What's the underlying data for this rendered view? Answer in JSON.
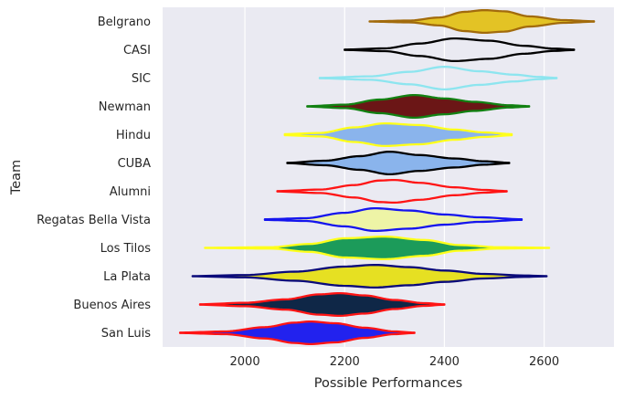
{
  "chart_data": {
    "type": "violin",
    "orientation": "horizontal",
    "xlabel": "Possible Performances",
    "ylabel": "Team",
    "xlim": [
      1835,
      2740
    ],
    "xticks": [
      2000,
      2200,
      2400,
      2600
    ],
    "grid": "vertical",
    "background": "#eaeaf2",
    "categories": [
      "Belgrano",
      "CASI",
      "SIC",
      "Newman",
      "Hindu",
      "CUBA",
      "Alumni",
      "Regatas Bella Vista",
      "Los Tilos",
      "La Plata",
      "Buenos Aires",
      "San Luis"
    ],
    "series": [
      {
        "team": "Belgrano",
        "min": 2250,
        "max": 2700,
        "fill": "#e3c325",
        "edge": "#a26b0c",
        "profile": [
          [
            2250,
            0.01
          ],
          [
            2330,
            0.08
          ],
          [
            2390,
            0.35
          ],
          [
            2440,
            0.85
          ],
          [
            2480,
            1.0
          ],
          [
            2520,
            0.9
          ],
          [
            2570,
            0.45
          ],
          [
            2640,
            0.12
          ],
          [
            2700,
            0.02
          ]
        ]
      },
      {
        "team": "CASI",
        "min": 2200,
        "max": 2660,
        "fill": "none",
        "edge": "#000000",
        "profile": [
          [
            2200,
            0.02
          ],
          [
            2280,
            0.12
          ],
          [
            2350,
            0.55
          ],
          [
            2420,
            1.0
          ],
          [
            2490,
            0.8
          ],
          [
            2560,
            0.35
          ],
          [
            2620,
            0.1
          ],
          [
            2660,
            0.02
          ]
        ]
      },
      {
        "team": "SIC",
        "min": 2150,
        "max": 2625,
        "fill": "none",
        "edge": "#8de5ef",
        "profile": [
          [
            2150,
            0.02
          ],
          [
            2250,
            0.15
          ],
          [
            2330,
            0.55
          ],
          [
            2400,
            1.0
          ],
          [
            2470,
            0.6
          ],
          [
            2540,
            0.3
          ],
          [
            2590,
            0.1
          ],
          [
            2625,
            0.02
          ]
        ]
      },
      {
        "team": "Newman",
        "min": 2125,
        "max": 2570,
        "fill": "#6b1616",
        "edge": "#128112",
        "profile": [
          [
            2125,
            0.02
          ],
          [
            2200,
            0.15
          ],
          [
            2270,
            0.6
          ],
          [
            2340,
            1.0
          ],
          [
            2400,
            0.7
          ],
          [
            2460,
            0.4
          ],
          [
            2530,
            0.1
          ],
          [
            2570,
            0.02
          ]
        ]
      },
      {
        "team": "Hindu",
        "min": 2080,
        "max": 2535,
        "fill": "#8ab4ec",
        "edge": "#ffff1a",
        "profile": [
          [
            2080,
            0.05
          ],
          [
            2150,
            0.15
          ],
          [
            2220,
            0.65
          ],
          [
            2280,
            1.0
          ],
          [
            2350,
            0.85
          ],
          [
            2420,
            0.45
          ],
          [
            2480,
            0.2
          ],
          [
            2535,
            0.05
          ]
        ]
      },
      {
        "team": "CUBA",
        "min": 2085,
        "max": 2530,
        "fill": "#8ab4ec",
        "edge": "#000000",
        "profile": [
          [
            2085,
            0.02
          ],
          [
            2160,
            0.2
          ],
          [
            2230,
            0.6
          ],
          [
            2290,
            1.0
          ],
          [
            2350,
            0.7
          ],
          [
            2420,
            0.4
          ],
          [
            2480,
            0.15
          ],
          [
            2530,
            0.02
          ]
        ]
      },
      {
        "team": "Alumni",
        "min": 2065,
        "max": 2525,
        "fill": "none",
        "edge": "#ff1515",
        "profile": [
          [
            2065,
            0.02
          ],
          [
            2150,
            0.15
          ],
          [
            2220,
            0.55
          ],
          [
            2270,
            0.95
          ],
          [
            2300,
            1.0
          ],
          [
            2350,
            0.75
          ],
          [
            2420,
            0.35
          ],
          [
            2480,
            0.12
          ],
          [
            2525,
            0.02
          ]
        ]
      },
      {
        "team": "Regatas Bella Vista",
        "min": 2040,
        "max": 2555,
        "fill": "#eef4a6",
        "edge": "#1515ee",
        "profile": [
          [
            2040,
            0.03
          ],
          [
            2120,
            0.12
          ],
          [
            2200,
            0.6
          ],
          [
            2260,
            1.0
          ],
          [
            2330,
            0.8
          ],
          [
            2400,
            0.45
          ],
          [
            2470,
            0.2
          ],
          [
            2555,
            0.03
          ]
        ]
      },
      {
        "team": "Los Tilos",
        "min": 1920,
        "max": 2610,
        "fill": "#1c9b5a",
        "edge": "#ffff1a",
        "profile": [
          [
            1920,
            0.01
          ],
          [
            2050,
            0.06
          ],
          [
            2130,
            0.35
          ],
          [
            2200,
            0.85
          ],
          [
            2280,
            1.0
          ],
          [
            2360,
            0.7
          ],
          [
            2430,
            0.25
          ],
          [
            2510,
            0.06
          ],
          [
            2610,
            0.01
          ]
        ]
      },
      {
        "team": "La Plata",
        "min": 1895,
        "max": 2605,
        "fill": "#e6e022",
        "edge": "#0a0a7a",
        "profile": [
          [
            1895,
            0.01
          ],
          [
            2000,
            0.1
          ],
          [
            2100,
            0.4
          ],
          [
            2200,
            0.85
          ],
          [
            2260,
            1.0
          ],
          [
            2330,
            0.8
          ],
          [
            2400,
            0.5
          ],
          [
            2480,
            0.2
          ],
          [
            2560,
            0.06
          ],
          [
            2605,
            0.01
          ]
        ]
      },
      {
        "team": "Buenos Aires",
        "min": 1910,
        "max": 2400,
        "fill": "#0f2747",
        "edge": "#ff1515",
        "profile": [
          [
            1910,
            0.02
          ],
          [
            2000,
            0.15
          ],
          [
            2080,
            0.45
          ],
          [
            2150,
            0.9
          ],
          [
            2190,
            1.0
          ],
          [
            2240,
            0.8
          ],
          [
            2300,
            0.4
          ],
          [
            2360,
            0.12
          ],
          [
            2400,
            0.02
          ]
        ]
      },
      {
        "team": "San Luis",
        "min": 1870,
        "max": 2340,
        "fill": "#2222ee",
        "edge": "#ff1515",
        "profile": [
          [
            1870,
            0.02
          ],
          [
            1960,
            0.12
          ],
          [
            2040,
            0.5
          ],
          [
            2100,
            0.9
          ],
          [
            2130,
            1.0
          ],
          [
            2180,
            0.85
          ],
          [
            2240,
            0.45
          ],
          [
            2300,
            0.12
          ],
          [
            2340,
            0.02
          ]
        ]
      }
    ]
  }
}
